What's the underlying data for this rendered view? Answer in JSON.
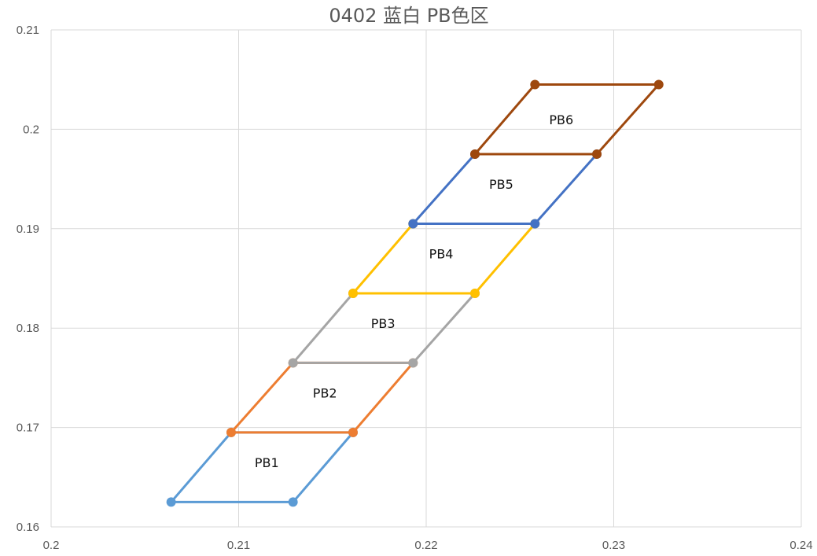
{
  "chart_data": {
    "type": "scatter",
    "title": "0402 蓝白 PB色区",
    "xlabel": "",
    "ylabel": "",
    "xlim": [
      0.2,
      0.24
    ],
    "ylim": [
      0.16,
      0.21
    ],
    "x_ticks": [
      0.2,
      0.21,
      0.22,
      0.23,
      0.24
    ],
    "x_tick_labels": [
      "0.2",
      "0.21",
      "0.22",
      "0.23",
      "0.24"
    ],
    "y_ticks": [
      0.16,
      0.17,
      0.18,
      0.19,
      0.2,
      0.21
    ],
    "y_tick_labels": [
      "0.16",
      "0.17",
      "0.18",
      "0.19",
      "0.2",
      "0.21"
    ],
    "grid": true,
    "legend": "none",
    "series": [
      {
        "label": "PB1",
        "color": "#5b9bd5",
        "label_at": [
          0.2115,
          0.166
        ],
        "points": [
          [
            0.2064,
            0.1625
          ],
          [
            0.2129,
            0.1625
          ],
          [
            0.2161,
            0.1695
          ],
          [
            0.2096,
            0.1695
          ],
          [
            0.2064,
            0.1625
          ]
        ]
      },
      {
        "label": "PB2",
        "color": "#ed7d31",
        "label_at": [
          0.2146,
          0.173
        ],
        "points": [
          [
            0.2096,
            0.1695
          ],
          [
            0.2161,
            0.1695
          ],
          [
            0.2193,
            0.1765
          ],
          [
            0.2129,
            0.1765
          ],
          [
            0.2096,
            0.1695
          ]
        ]
      },
      {
        "label": "PB3",
        "color": "#a5a5a5",
        "label_at": [
          0.2177,
          0.18
        ],
        "points": [
          [
            0.2129,
            0.1765
          ],
          [
            0.2193,
            0.1765
          ],
          [
            0.2226,
            0.1835
          ],
          [
            0.2161,
            0.1835
          ],
          [
            0.2129,
            0.1765
          ]
        ]
      },
      {
        "label": "PB4",
        "color": "#ffc000",
        "label_at": [
          0.2208,
          0.187
        ],
        "points": [
          [
            0.2161,
            0.1835
          ],
          [
            0.2226,
            0.1835
          ],
          [
            0.2258,
            0.1905
          ],
          [
            0.2193,
            0.1905
          ],
          [
            0.2161,
            0.1835
          ]
        ]
      },
      {
        "label": "PB5",
        "color": "#4472c4",
        "label_at": [
          0.224,
          0.194
        ],
        "points": [
          [
            0.2193,
            0.1905
          ],
          [
            0.2258,
            0.1905
          ],
          [
            0.2291,
            0.1975
          ],
          [
            0.2226,
            0.1975
          ],
          [
            0.2193,
            0.1905
          ]
        ]
      },
      {
        "label": "PB6",
        "color": "#9e480e",
        "label_at": [
          0.2272,
          0.2005
        ],
        "points": [
          [
            0.2226,
            0.1975
          ],
          [
            0.2291,
            0.1975
          ],
          [
            0.2324,
            0.2045
          ],
          [
            0.2258,
            0.2045
          ],
          [
            0.2226,
            0.1975
          ]
        ]
      }
    ]
  }
}
